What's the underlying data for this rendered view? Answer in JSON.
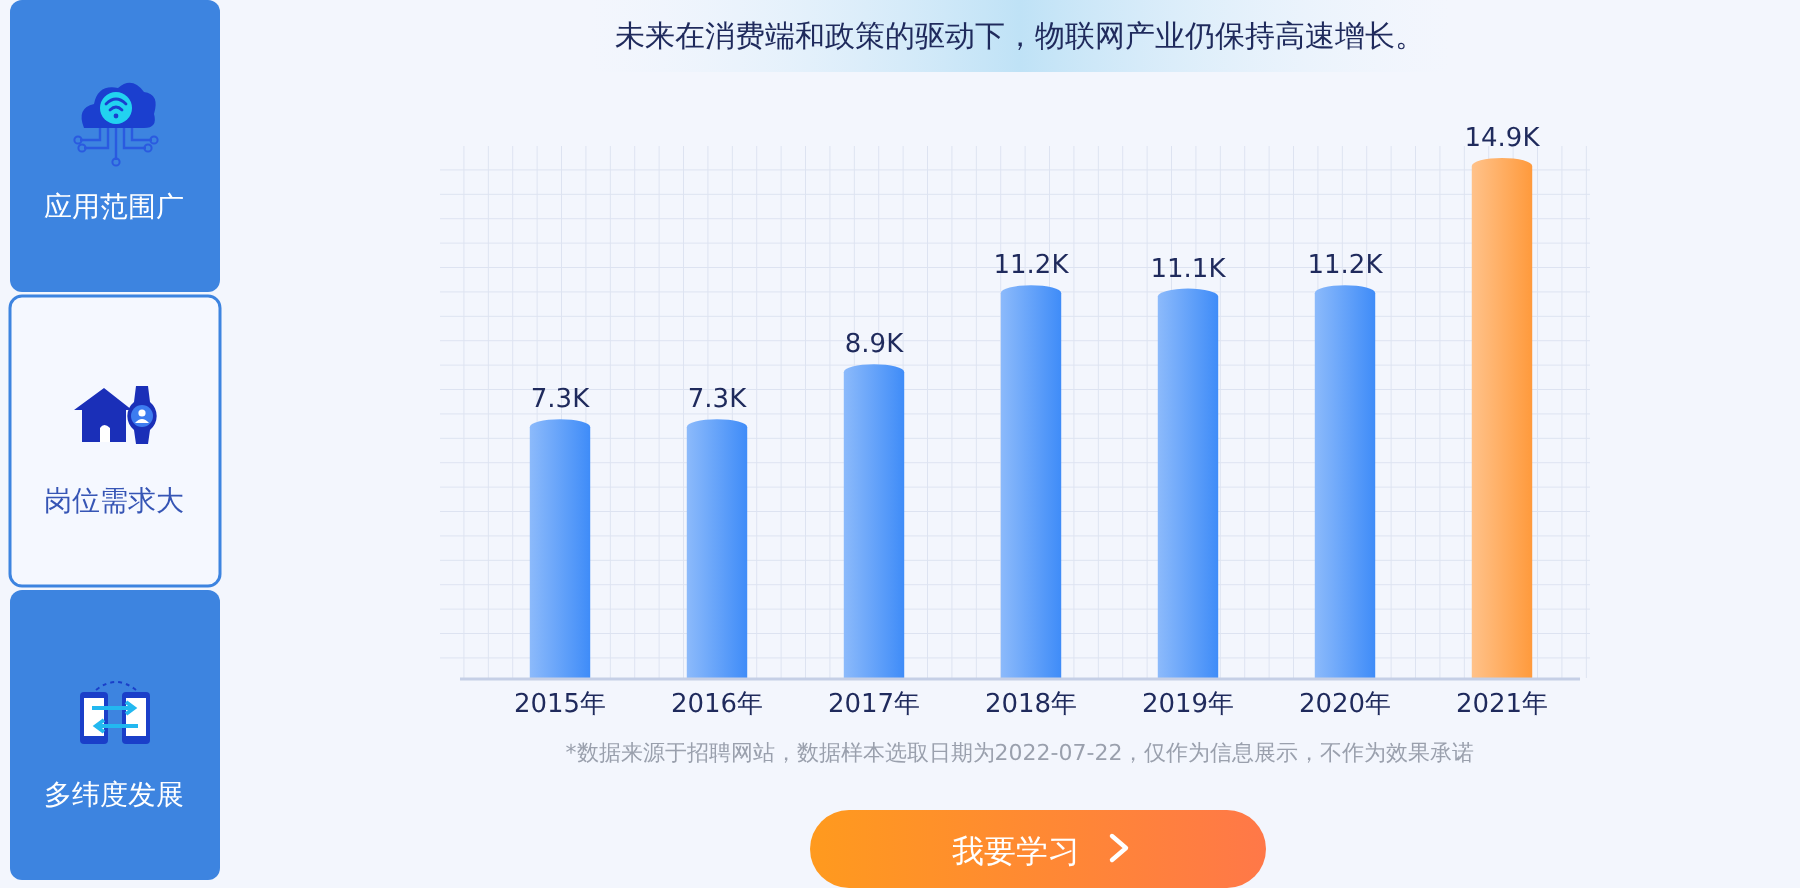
{
  "chart_data": {
    "type": "bar",
    "title": "未来在消费端和政策的驱动下，物联网产业仍保持高速增长。",
    "categories": [
      "2015年",
      "2016年",
      "2017年",
      "2018年",
      "2019年",
      "2020年",
      "2021年"
    ],
    "values": [
      7.3,
      7.3,
      8.9,
      11.2,
      11.1,
      11.2,
      14.9
    ],
    "colors": [
      "#3f8cf8",
      "#3f8cf8",
      "#3f8cf8",
      "#3f8cf8",
      "#3f8cf8",
      "#3f8cf8",
      "#ff9a3c"
    ],
    "value_labels": [
      "7.3K",
      "7.3K",
      "8.9K",
      "11.2K",
      "11.1K",
      "11.2K",
      "14.9K"
    ],
    "annotations": [
      "应用范围广",
      "岗位需求大",
      "多纬度发展",
      "*数据来源于招聘网站，数据样本选取日期为2022-07-22，仅作为信息展示，不作为效果承诺",
      "我要学习"
    ]
  }
}
